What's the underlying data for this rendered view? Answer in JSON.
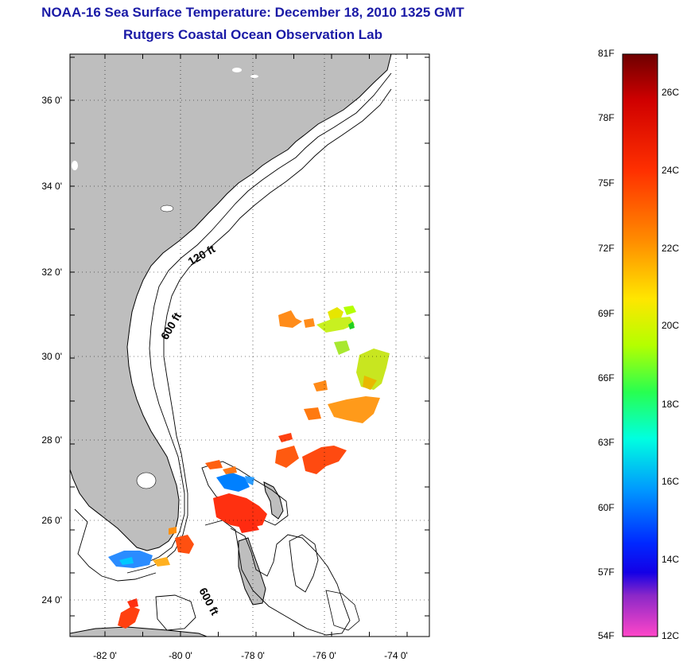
{
  "title": "NOAA-16 Sea Surface Temperature:  December 18, 2010 1325 GMT",
  "subtitle": "Rutgers Coastal Ocean Observation Lab",
  "map": {
    "lon_ticks": [
      "-82 0'",
      "-80 0'",
      "-78 0'",
      "-76 0'",
      "-74 0'"
    ],
    "lat_ticks": [
      "36 0'",
      "34 0'",
      "32 0'",
      "30 0'",
      "28 0'",
      "26 0'",
      "24 0'"
    ],
    "contour_labels": [
      "120 ft",
      "600 ft",
      "600 ft"
    ],
    "land_color": "#bebebe",
    "ocean_color": "#ffffff",
    "grid": "dotted"
  },
  "colorbar": {
    "fahrenheit_labels": [
      "81F",
      "78F",
      "75F",
      "72F",
      "69F",
      "66F",
      "63F",
      "60F",
      "57F",
      "54F"
    ],
    "celsius_labels": [
      "26C",
      "24C",
      "22C",
      "20C",
      "18C",
      "16C",
      "14C",
      "12C"
    ],
    "colors_top_to_bottom": [
      "#6e0000",
      "#d00000",
      "#ff3000",
      "#ff8c00",
      "#ffe600",
      "#b4ff00",
      "#28ff50",
      "#00ffe0",
      "#0096ff",
      "#0028ff",
      "#1400e6",
      "#8c28c8",
      "#ff46c8"
    ]
  }
}
